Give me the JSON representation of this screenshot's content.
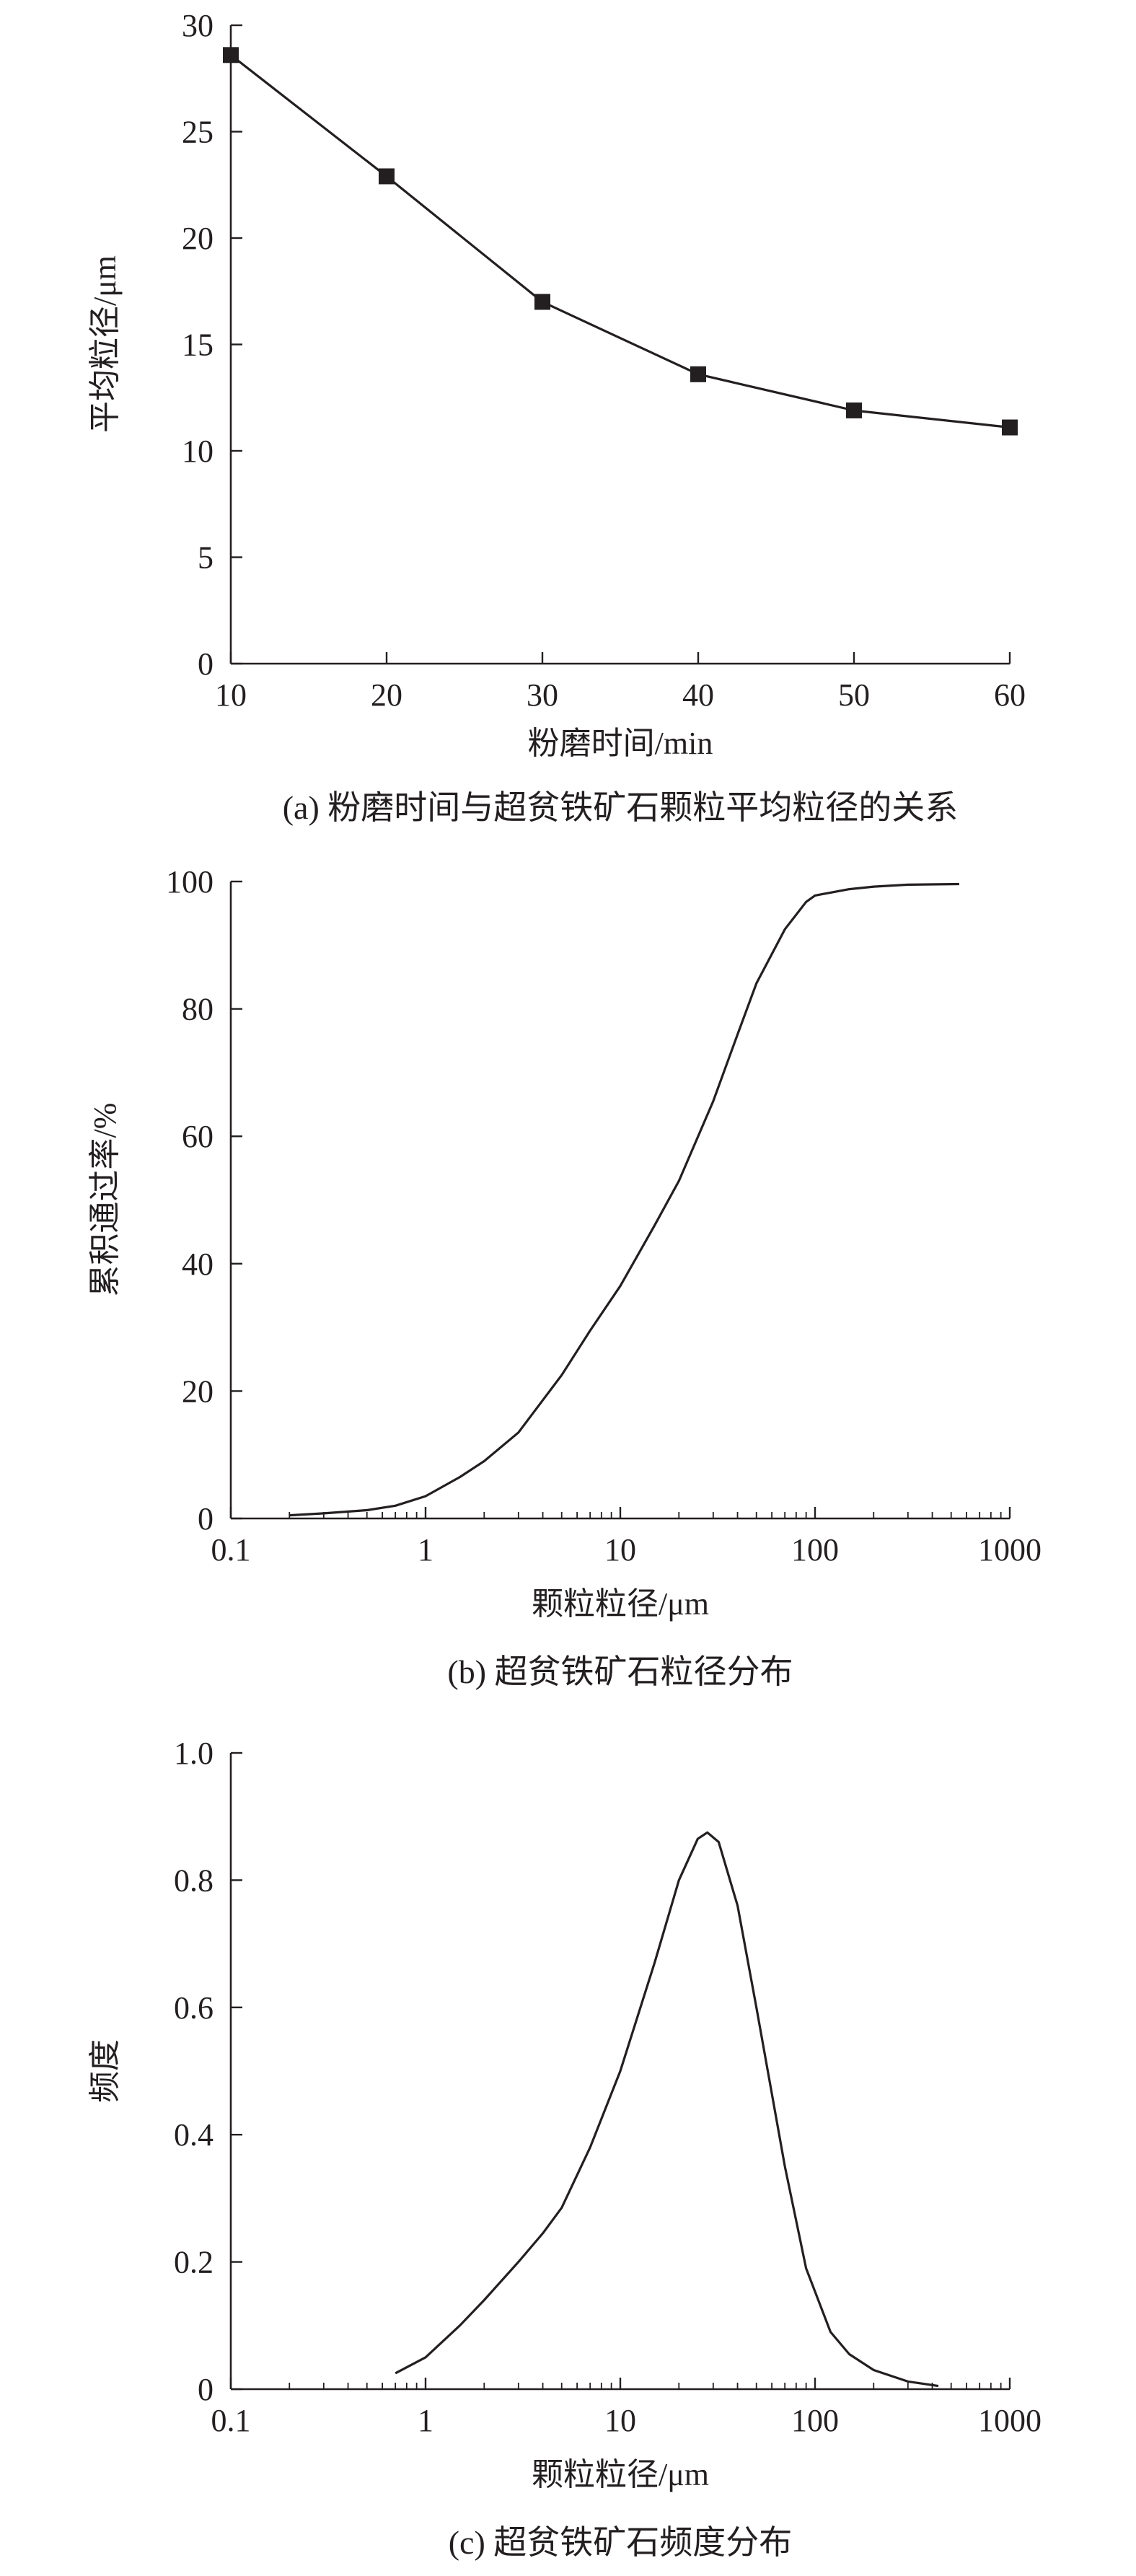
{
  "chart_data": [
    {
      "type": "line",
      "caption": "(a) 粉磨时间与超贫铁矿石颗粒平均粒径的关系",
      "xlabel": "粉磨时间/min",
      "ylabel": "平均粒径/μm",
      "xscale": "linear",
      "xlim": [
        10,
        60
      ],
      "ylim": [
        0,
        30
      ],
      "xticks": [
        10,
        20,
        30,
        40,
        50,
        60
      ],
      "yticks": [
        0,
        5,
        10,
        15,
        20,
        25,
        30
      ],
      "grid": false,
      "markers": "square",
      "series": [
        {
          "x": [
            10,
            20,
            30,
            40,
            50,
            60
          ],
          "y": [
            28.6,
            22.9,
            17.0,
            13.6,
            11.9,
            11.1
          ]
        }
      ]
    },
    {
      "type": "line",
      "caption": "(b) 超贫铁矿石粒径分布",
      "xlabel": "颗粒粒径/μm",
      "ylabel": "累积通过率/%",
      "xscale": "log",
      "xlim": [
        0.1,
        1000
      ],
      "ylim": [
        0,
        100
      ],
      "xticks": [
        0.1,
        1,
        10,
        100,
        1000
      ],
      "xticklabels": [
        "0.1",
        "1",
        "10",
        "100",
        "1000"
      ],
      "yticks": [
        0,
        20,
        40,
        60,
        80,
        100
      ],
      "grid": false,
      "series": [
        {
          "x": [
            0.2,
            0.3,
            0.5,
            0.7,
            1,
            1.5,
            2,
            3,
            5,
            7,
            10,
            15,
            20,
            30,
            40,
            50,
            70,
            90,
            100,
            150,
            200,
            300,
            550
          ],
          "y": [
            0.5,
            0.8,
            1.3,
            2.0,
            3.5,
            6.5,
            9.0,
            13.5,
            22.5,
            29.5,
            36.5,
            46.0,
            53.0,
            65.5,
            76.0,
            84.0,
            92.5,
            96.8,
            97.8,
            98.8,
            99.2,
            99.5,
            99.6
          ]
        }
      ]
    },
    {
      "type": "line",
      "caption": "(c) 超贫铁矿石频度分布",
      "xlabel": "颗粒粒径/μm",
      "ylabel": "频度",
      "xscale": "log",
      "xlim": [
        0.1,
        1000
      ],
      "ylim": [
        0,
        1.0
      ],
      "xticks": [
        0.1,
        1,
        10,
        100,
        1000
      ],
      "xticklabels": [
        "0.1",
        "1",
        "10",
        "100",
        "1000"
      ],
      "yticks": [
        0,
        0.2,
        0.4,
        0.6,
        0.8,
        1.0
      ],
      "yticklabels": [
        "0",
        "0.2",
        "0.4",
        "0.6",
        "0.8",
        "1.0"
      ],
      "grid": false,
      "series": [
        {
          "x": [
            0.7,
            1,
            1.5,
            2,
            3,
            4,
            5,
            7,
            10,
            15,
            20,
            25,
            28,
            32,
            40,
            50,
            70,
            90,
            120,
            150,
            200,
            300,
            430
          ],
          "y": [
            0.025,
            0.05,
            0.1,
            0.14,
            0.2,
            0.245,
            0.285,
            0.38,
            0.5,
            0.67,
            0.8,
            0.865,
            0.875,
            0.86,
            0.76,
            0.6,
            0.35,
            0.19,
            0.09,
            0.055,
            0.03,
            0.012,
            0.005
          ]
        }
      ]
    }
  ]
}
